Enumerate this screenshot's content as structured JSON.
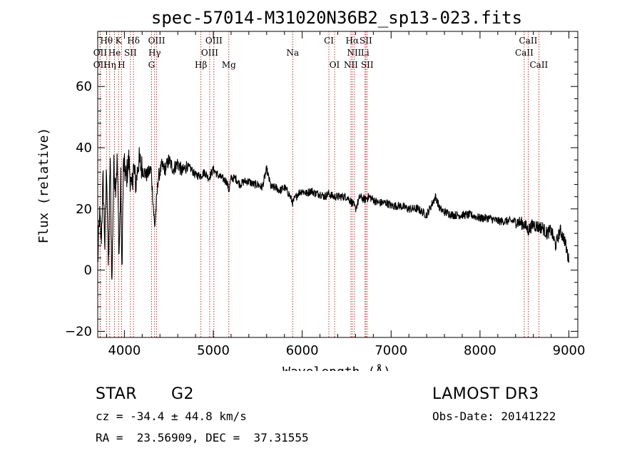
{
  "chart_data": {
    "type": "line",
    "title": "spec-57014-M31020N36B2_sp13-023.fits",
    "xlabel": "Wavelength (Å)",
    "ylabel": "Flux (relative)",
    "xlim": [
      3700,
      9100
    ],
    "ylim": [
      -22,
      78
    ],
    "xticks": [
      4000,
      5000,
      6000,
      7000,
      8000,
      9000
    ],
    "yticks": [
      -20,
      0,
      20,
      40,
      60
    ],
    "spectrum": {
      "x": [
        3700,
        3720,
        3740,
        3760,
        3780,
        3800,
        3820,
        3840,
        3860,
        3880,
        3900,
        3920,
        3940,
        3960,
        3970,
        3990,
        4020,
        4050,
        4080,
        4100,
        4130,
        4160,
        4200,
        4250,
        4300,
        4340,
        4380,
        4420,
        4460,
        4500,
        4550,
        4600,
        4650,
        4700,
        4750,
        4800,
        4861,
        4900,
        4950,
        5000,
        5050,
        5100,
        5150,
        5175,
        5200,
        5250,
        5300,
        5350,
        5400,
        5450,
        5500,
        5550,
        5600,
        5650,
        5700,
        5750,
        5800,
        5850,
        5893,
        5950,
        6000,
        6050,
        6100,
        6150,
        6200,
        6250,
        6300,
        6350,
        6400,
        6450,
        6500,
        6563,
        6600,
        6650,
        6700,
        6750,
        6800,
        6850,
        6900,
        6950,
        7000,
        7100,
        7200,
        7300,
        7400,
        7500,
        7550,
        7600,
        7700,
        7800,
        7900,
        8000,
        8100,
        8200,
        8300,
        8400,
        8500,
        8540,
        8600,
        8660,
        8700,
        8750,
        8800,
        8850,
        8900,
        8950,
        9000
      ],
      "y": [
        2,
        18,
        10,
        30,
        8,
        35,
        -1,
        38,
        -5,
        34,
        28,
        36,
        5,
        30,
        -3,
        35,
        30,
        36,
        25,
        34,
        28,
        36,
        33,
        31,
        33,
        14,
        30,
        34,
        33,
        36,
        33,
        35,
        32,
        34,
        33,
        31,
        31,
        32,
        30,
        33,
        31,
        30,
        29,
        26,
        30,
        30,
        28,
        29,
        29,
        28,
        28,
        27,
        33,
        27,
        27,
        26,
        27,
        25,
        22,
        25,
        26,
        25,
        26,
        25,
        25,
        24,
        25,
        24,
        24,
        24,
        24,
        22,
        20,
        24,
        23,
        24,
        23,
        22,
        22,
        22,
        21,
        21,
        20,
        20,
        18,
        24,
        20,
        19,
        18,
        18,
        18,
        17,
        17,
        16,
        16,
        16,
        15,
        13,
        15,
        14,
        14,
        12,
        13,
        8,
        13,
        10,
        3
      ]
    },
    "lines": [
      {
        "name": "Hθ",
        "wl": 3798,
        "row": 0
      },
      {
        "name": "K",
        "wl": 3934,
        "row": 0
      },
      {
        "name": "Hδ",
        "wl": 4102,
        "row": 0
      },
      {
        "name": "OIII",
        "wl": 4363,
        "row": 0
      },
      {
        "name": "OIII",
        "wl": 5007,
        "row": 0
      },
      {
        "name": "CI",
        "wl": 6300,
        "row": 0
      },
      {
        "name": "Hα",
        "wl": 6563,
        "row": 0
      },
      {
        "name": "SII",
        "wl": 6716,
        "row": 0
      },
      {
        "name": "CaII",
        "wl": 8542,
        "row": 0
      },
      {
        "name": "OII",
        "wl": 3727,
        "row": 1
      },
      {
        "name": "He",
        "wl": 3889,
        "row": 1
      },
      {
        "name": "SII",
        "wl": 4068,
        "row": 1
      },
      {
        "name": "Hγ",
        "wl": 4340,
        "row": 1
      },
      {
        "name": "OIII",
        "wl": 4959,
        "row": 1
      },
      {
        "name": "Na",
        "wl": 5893,
        "row": 1
      },
      {
        "name": "NII",
        "wl": 6584,
        "row": 1
      },
      {
        "name": "Li",
        "wl": 6707,
        "row": 1
      },
      {
        "name": "CaII",
        "wl": 8498,
        "row": 1
      },
      {
        "name": "OII",
        "wl": 3727,
        "row": 2
      },
      {
        "name": "Hη",
        "wl": 3835,
        "row": 2
      },
      {
        "name": "H",
        "wl": 3968,
        "row": 2
      },
      {
        "name": "G",
        "wl": 4305,
        "row": 2
      },
      {
        "name": "Hβ",
        "wl": 4861,
        "row": 2
      },
      {
        "name": "Mg",
        "wl": 5175,
        "row": 2
      },
      {
        "name": "OI",
        "wl": 6364,
        "row": 2
      },
      {
        "name": "NII",
        "wl": 6548,
        "row": 2
      },
      {
        "name": "SII",
        "wl": 6731,
        "row": 2
      },
      {
        "name": "CaII",
        "wl": 8662,
        "row": 2
      }
    ]
  },
  "info": {
    "object_class": "STAR",
    "subclass": "G2",
    "survey": "LAMOST DR3",
    "redshift": "cz = -34.4 ± 44.8 km/s",
    "obs_date": "Obs-Date: 20141222",
    "coords": "RA =  23.56909, DEC =  37.31555"
  }
}
